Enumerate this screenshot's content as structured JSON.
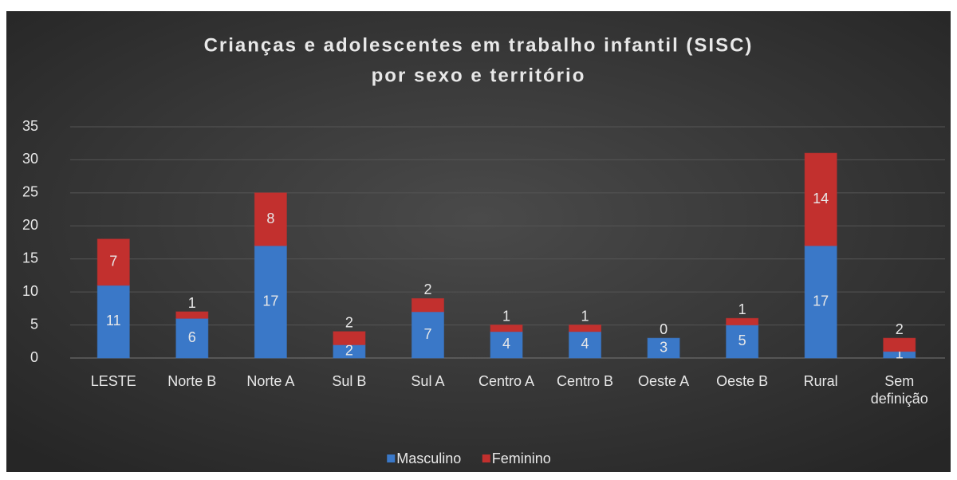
{
  "chart_data": {
    "type": "stacked_bar",
    "title": [
      "Crianças e adolescentes em trabalho infantil (SISC)",
      "por sexo e território"
    ],
    "categories": [
      "LESTE",
      "Norte B",
      "Norte A",
      "Sul B",
      "Sul A",
      "Centro A",
      "Centro B",
      "Oeste A",
      "Oeste B",
      "Rural",
      "Sem definição"
    ],
    "series": [
      {
        "name": "Masculino",
        "color": "#3a78c8",
        "values": [
          11,
          6,
          17,
          2,
          7,
          4,
          4,
          3,
          5,
          17,
          1
        ]
      },
      {
        "name": "Feminino",
        "color": "#c2302e",
        "values": [
          7,
          1,
          8,
          2,
          2,
          1,
          1,
          0,
          1,
          14,
          2
        ]
      }
    ],
    "ylim": [
      0,
      35
    ],
    "yticks": [
      0,
      5,
      10,
      15,
      20,
      25,
      30,
      35
    ],
    "grid": true,
    "legend": "bottom"
  }
}
